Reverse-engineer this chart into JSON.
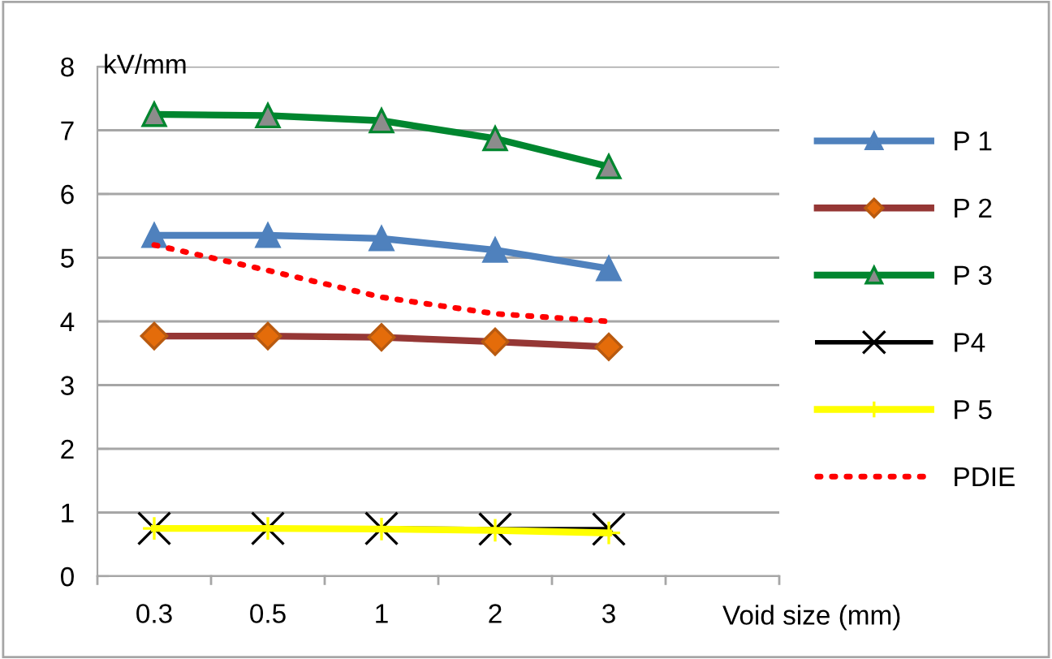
{
  "chart_data": {
    "type": "line",
    "ylabel": "kV/mm",
    "xlabel": "Void size (mm)",
    "categories": [
      "0.3",
      "0.5",
      "1",
      "2",
      "3"
    ],
    "series": [
      {
        "name": "P 1",
        "color": "#4f81bd",
        "marker": "triangle",
        "values": [
          5.35,
          5.35,
          5.3,
          5.12,
          4.83
        ]
      },
      {
        "name": "P 2",
        "color": "#953735",
        "marker": "diamond",
        "values": [
          3.77,
          3.77,
          3.75,
          3.68,
          3.6
        ]
      },
      {
        "name": "P 3",
        "color": "#00862f",
        "marker": "triangle",
        "values": [
          7.25,
          7.23,
          7.15,
          6.87,
          6.43
        ]
      },
      {
        "name": "P4",
        "color": "#000000",
        "marker": "cross",
        "values": [
          0.75,
          0.75,
          0.75,
          0.74,
          0.74
        ]
      },
      {
        "name": "P 5",
        "color": "#ffff00",
        "marker": "plus",
        "values": [
          0.75,
          0.75,
          0.74,
          0.72,
          0.68
        ]
      },
      {
        "name": "PDIE",
        "color": "#ff0000",
        "marker": "none",
        "line_style": "dotted",
        "values": [
          5.2,
          4.8,
          4.38,
          4.12,
          4.0
        ]
      }
    ],
    "ylim": [
      0,
      8
    ],
    "yticks": [
      0,
      1,
      2,
      3,
      4,
      5,
      6,
      7,
      8
    ],
    "grid": "y",
    "legend": "right"
  }
}
